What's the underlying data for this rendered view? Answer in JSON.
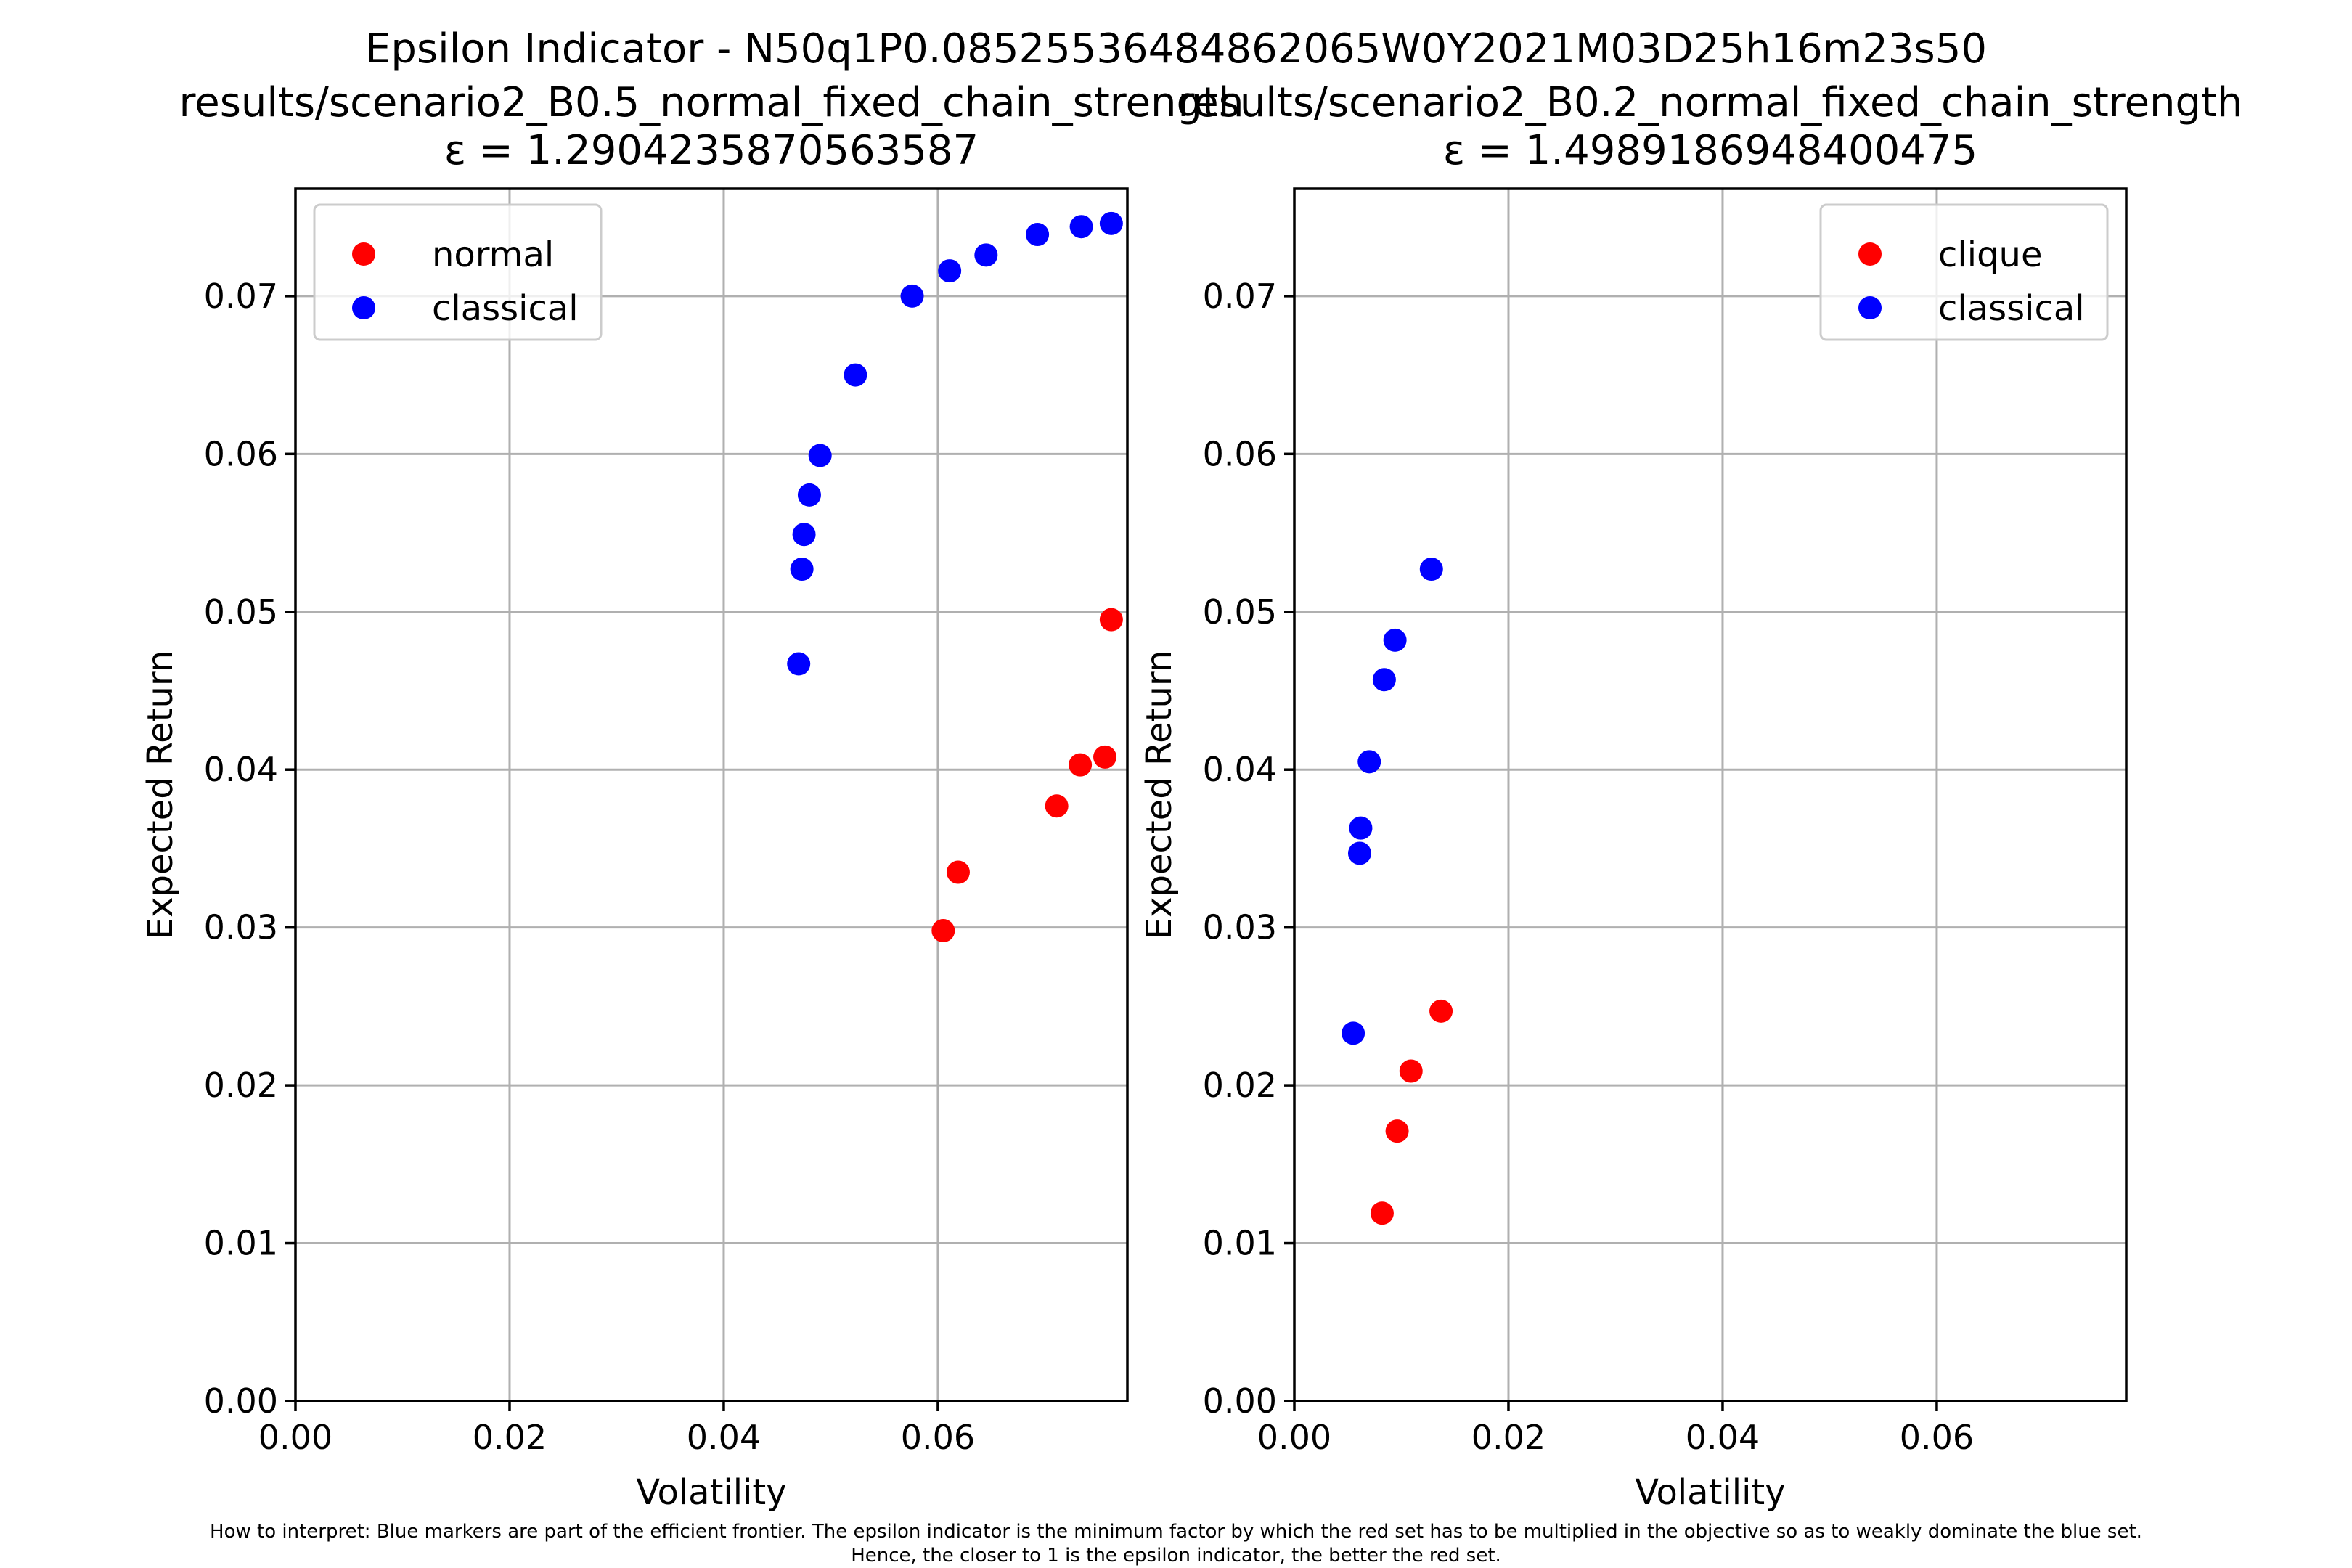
{
  "figure": {
    "suptitle": "Epsilon Indicator - N50q1P0.08525536484862065W0Y2021M03D25h16m23s50",
    "note_line1": "How to interpret: Blue markers are part of the efficient frontier. The epsilon indicator is the minimum factor by which the red set has to be multiplied in the objective so as to weakly dominate the blue set.",
    "note_line2": "Hence, the closer to 1 is the epsilon indicator, the better the red set."
  },
  "colors": {
    "red": "#ff0000",
    "blue": "#0000ff"
  },
  "chart_data": [
    {
      "type": "scatter",
      "title_line1": "results/scenario2_B0.5_normal_fixed_chain_strength",
      "title_line2": "ε = 1.2904235870563587",
      "xlabel": "Volatility",
      "ylabel": "Expected Return",
      "xlim": [
        0.0,
        0.0777
      ],
      "ylim": [
        0.0,
        0.0768
      ],
      "xticks": [
        0.0,
        0.02,
        0.04,
        0.06
      ],
      "xtick_labels": [
        "0.00",
        "0.02",
        "0.04",
        "0.06"
      ],
      "yticks": [
        0.0,
        0.01,
        0.02,
        0.03,
        0.04,
        0.05,
        0.06,
        0.07
      ],
      "ytick_labels": [
        "0.00",
        "0.01",
        "0.02",
        "0.03",
        "0.04",
        "0.05",
        "0.06",
        "0.07"
      ],
      "grid": true,
      "legend_position": "top-left",
      "series": [
        {
          "name": "normal",
          "color": "red",
          "points": [
            [
              0.0605,
              0.0298
            ],
            [
              0.0619,
              0.0335
            ],
            [
              0.0711,
              0.0377
            ],
            [
              0.0733,
              0.0403
            ],
            [
              0.0756,
              0.0408
            ],
            [
              0.0762,
              0.0495
            ]
          ]
        },
        {
          "name": "classical",
          "color": "blue",
          "points": [
            [
              0.047,
              0.0467
            ],
            [
              0.0473,
              0.0527
            ],
            [
              0.0475,
              0.0549
            ],
            [
              0.048,
              0.0574
            ],
            [
              0.049,
              0.0599
            ],
            [
              0.0523,
              0.065
            ],
            [
              0.0576,
              0.07
            ],
            [
              0.0611,
              0.0716
            ],
            [
              0.0645,
              0.0726
            ],
            [
              0.0693,
              0.0739
            ],
            [
              0.0734,
              0.0744
            ],
            [
              0.0762,
              0.0746
            ]
          ]
        }
      ]
    },
    {
      "type": "scatter",
      "title_line1": "results/scenario2_B0.2_normal_fixed_chain_strength",
      "title_line2": "ε = 1.4989186948400475",
      "xlabel": "Volatility",
      "ylabel": "Expected Return",
      "xlim": [
        0.0,
        0.0777
      ],
      "ylim": [
        0.0,
        0.0768
      ],
      "xticks": [
        0.0,
        0.02,
        0.04,
        0.06
      ],
      "xtick_labels": [
        "0.00",
        "0.02",
        "0.04",
        "0.06"
      ],
      "yticks": [
        0.0,
        0.01,
        0.02,
        0.03,
        0.04,
        0.05,
        0.06,
        0.07
      ],
      "ytick_labels": [
        "0.00",
        "0.01",
        "0.02",
        "0.03",
        "0.04",
        "0.05",
        "0.06",
        "0.07"
      ],
      "grid": true,
      "legend_position": "top-right",
      "series": [
        {
          "name": "clique",
          "color": "red",
          "points": [
            [
              0.0082,
              0.0119
            ],
            [
              0.0096,
              0.0171
            ],
            [
              0.0109,
              0.0209
            ],
            [
              0.0137,
              0.0247
            ]
          ]
        },
        {
          "name": "classical",
          "color": "blue",
          "points": [
            [
              0.0055,
              0.0233
            ],
            [
              0.0061,
              0.0347
            ],
            [
              0.0062,
              0.0363
            ],
            [
              0.007,
              0.0405
            ],
            [
              0.0084,
              0.0457
            ],
            [
              0.0094,
              0.0482
            ],
            [
              0.0128,
              0.0527
            ]
          ]
        }
      ]
    }
  ]
}
